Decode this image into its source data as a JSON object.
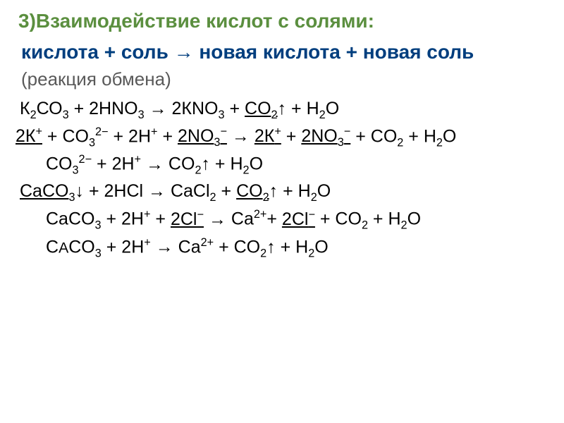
{
  "colors": {
    "heading": "#5b8f3f",
    "summary": "#003e7e",
    "paren": "#595959",
    "body": "#000000",
    "bullet": "#ad8f59"
  },
  "fonts": {
    "heading_size": 28,
    "body_size": 25,
    "summary_size": 28
  },
  "heading": {
    "bullet": "",
    "text": "3)Взаимодействие кислот с солями:"
  },
  "summary": "кислота + соль → новая кислота + новая соль",
  "paren": "(реакция обмена)",
  "eq1_molecular": "К₂CO₃ + 2HNO₃ → 2КNO₃ + CO₂↑ + H₂O",
  "eq1_ionic_full": "2К⁺ + CO₃²⁻ + 2H⁺ + 2NO₃⁻ → 2К⁺ + 2NO₃⁻ + CO₂ + H₂O",
  "eq1_ionic_net": "CO₃²⁻ + 2H⁺ → CO₂↑ + H₂O",
  "eq2_molecular": "CaCO₃↓ + 2HCl → CaCl₂ + CO₂↑ + H₂O",
  "eq2_ionic_full": "CaCO₃ + 2H⁺ + 2Cl⁻ → Ca²⁺+ 2Cl⁻ + CO₂ + H₂O",
  "eq2_ionic_net": "CaCO₃ + 2H⁺ → Ca²⁺ + CO₂↑ + H₂O",
  "hollow_bullet": ""
}
